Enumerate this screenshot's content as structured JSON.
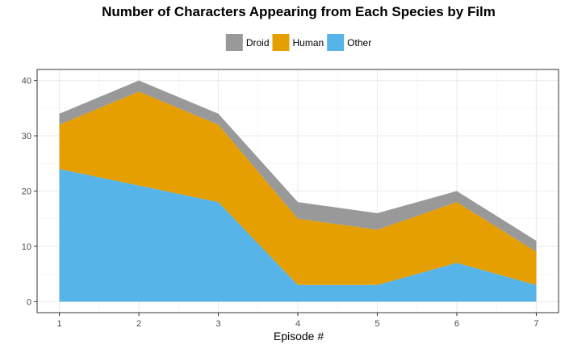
{
  "chart_data": {
    "type": "area",
    "stacked": true,
    "title": "Number of Characters Appearing from Each Species by Film",
    "xlabel": "Episode #",
    "ylabel": "",
    "x": [
      1,
      2,
      3,
      4,
      5,
      6,
      7
    ],
    "xlim": [
      0.72,
      7.28
    ],
    "ylim": [
      -2,
      42
    ],
    "yticks": [
      0,
      10,
      20,
      30,
      40
    ],
    "grid": true,
    "legend_position": "top",
    "series": [
      {
        "name": "Other",
        "color": "#56B4E9",
        "values": [
          24,
          21,
          18,
          3,
          3,
          7,
          3
        ]
      },
      {
        "name": "Human",
        "color": "#E69F00",
        "values": [
          8,
          17,
          14,
          12,
          10,
          11,
          6
        ]
      },
      {
        "name": "Droid",
        "color": "#999999",
        "values": [
          2,
          2,
          2,
          3,
          3,
          2,
          2
        ]
      }
    ],
    "legend_order": [
      "Droid",
      "Human",
      "Other"
    ]
  }
}
